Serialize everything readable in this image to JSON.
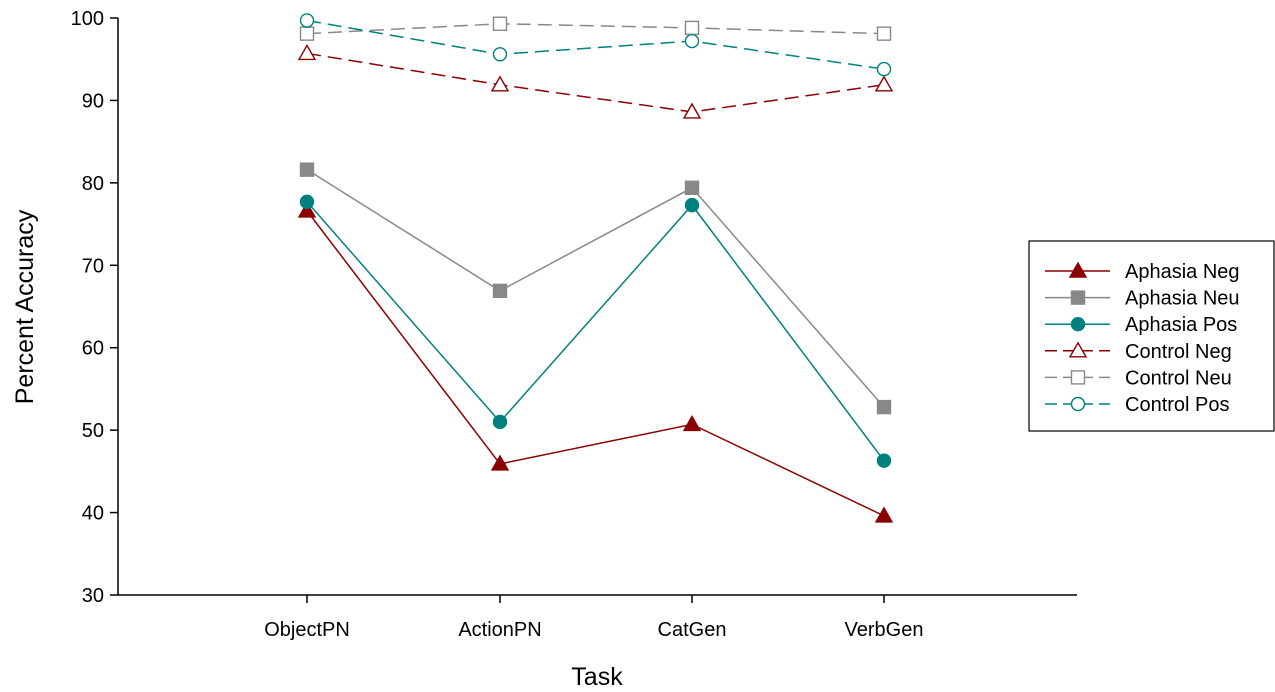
{
  "chart_data": {
    "type": "line",
    "title": "",
    "xlabel": "Task",
    "ylabel": "Percent Accuracy",
    "categories": [
      "ObjectPN",
      "ActionPN",
      "CatGen",
      "VerbGen"
    ],
    "ylim": [
      30,
      100
    ],
    "yticks": [
      30,
      40,
      50,
      60,
      70,
      80,
      90,
      100
    ],
    "grid": false,
    "legend_position": "right",
    "series": [
      {
        "name": "Aphasia Neg",
        "values": [
          76.6,
          45.9,
          50.7,
          39.6
        ],
        "color": "#8b0000",
        "marker": "triangle",
        "filled": true,
        "dashed": false
      },
      {
        "name": "Aphasia Neu",
        "values": [
          81.6,
          66.9,
          79.4,
          52.8
        ],
        "color": "#888888",
        "marker": "square",
        "filled": true,
        "dashed": false
      },
      {
        "name": "Aphasia Pos",
        "values": [
          77.7,
          51.0,
          77.3,
          46.3
        ],
        "color": "#008080",
        "marker": "circle",
        "filled": true,
        "dashed": false
      },
      {
        "name": "Control Neg",
        "values": [
          95.7,
          91.9,
          88.6,
          91.9
        ],
        "color": "#8b0000",
        "marker": "triangle",
        "filled": false,
        "dashed": true
      },
      {
        "name": "Control Neu",
        "values": [
          98.1,
          99.3,
          98.8,
          98.1
        ],
        "color": "#888888",
        "marker": "square",
        "filled": false,
        "dashed": true
      },
      {
        "name": "Control Pos",
        "values": [
          99.7,
          95.6,
          97.2,
          93.8
        ],
        "color": "#008080",
        "marker": "circle",
        "filled": false,
        "dashed": true
      }
    ]
  }
}
